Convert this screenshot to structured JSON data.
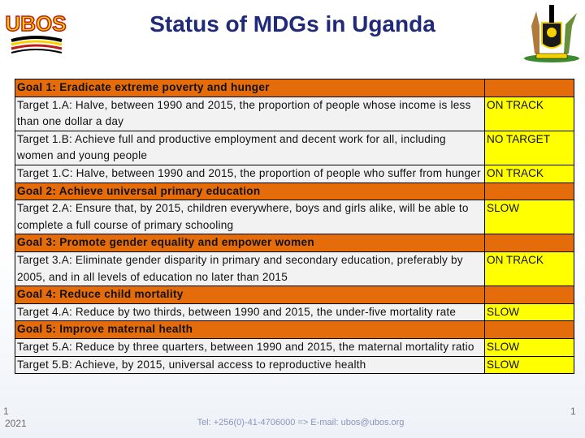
{
  "header": {
    "title": "Status of MDGs in Uganda",
    "left_logo": {
      "icon": "ubos-logo-icon",
      "text": "UBOS"
    },
    "right_logo": {
      "icon": "uganda-coat-of-arms-icon"
    }
  },
  "rows": [
    {
      "type": "goal",
      "text": "Goal 1: Eradicate extreme poverty and hunger"
    },
    {
      "type": "target",
      "text": "Target 1.A: Halve, between 1990 and 2015, the proportion of people whose income is less than one dollar a day",
      "status": "ON TRACK"
    },
    {
      "type": "target",
      "text": "Target 1.B: Achieve full and productive employment and decent work for all, including women and young people",
      "status": "NO TARGET"
    },
    {
      "type": "target",
      "text": "Target 1.C: Halve, between 1990 and 2015, the proportion of people who suffer from hunger",
      "status": "ON TRACK"
    },
    {
      "type": "goal",
      "text": "Goal 2: Achieve universal primary education"
    },
    {
      "type": "target",
      "text": "Target 2.A: Ensure that, by 2015, children everywhere, boys and girls alike, will be able to complete a full course of primary schooling",
      "status": "SLOW"
    },
    {
      "type": "goal",
      "text": "Goal 3: Promote gender equality and empower women"
    },
    {
      "type": "target",
      "text": "Target 3.A: Eliminate gender disparity in primary and secondary education, preferably by 2005, and in all levels of education no later than 2015",
      "status": "ON TRACK"
    },
    {
      "type": "goal",
      "text": "Goal 4: Reduce child mortality"
    },
    {
      "type": "target",
      "text": "Target 4.A: Reduce by two thirds, between 1990 and 2015, the under-five mortality rate",
      "status": "SLOW"
    },
    {
      "type": "goal",
      "text": "Goal 5: Improve maternal health"
    },
    {
      "type": "target",
      "text": "Target 5.A: Reduce by three quarters, between 1990 and 2015, the maternal mortality ratio",
      "status": "SLOW"
    },
    {
      "type": "target",
      "text": "Target 5.B: Achieve, by 2015, universal access to reproductive health",
      "status": "SLOW"
    }
  ],
  "footer": {
    "slide_number": "1",
    "year": "2021",
    "contact": "Tel: +256(0)-41-4706000 => E-mail: ubos@ubos.org",
    "page": "1"
  },
  "colors": {
    "goal": "#e46c0a",
    "target": "#f2f2f2",
    "status": "#ffff00",
    "title": "#1f2a7a"
  }
}
